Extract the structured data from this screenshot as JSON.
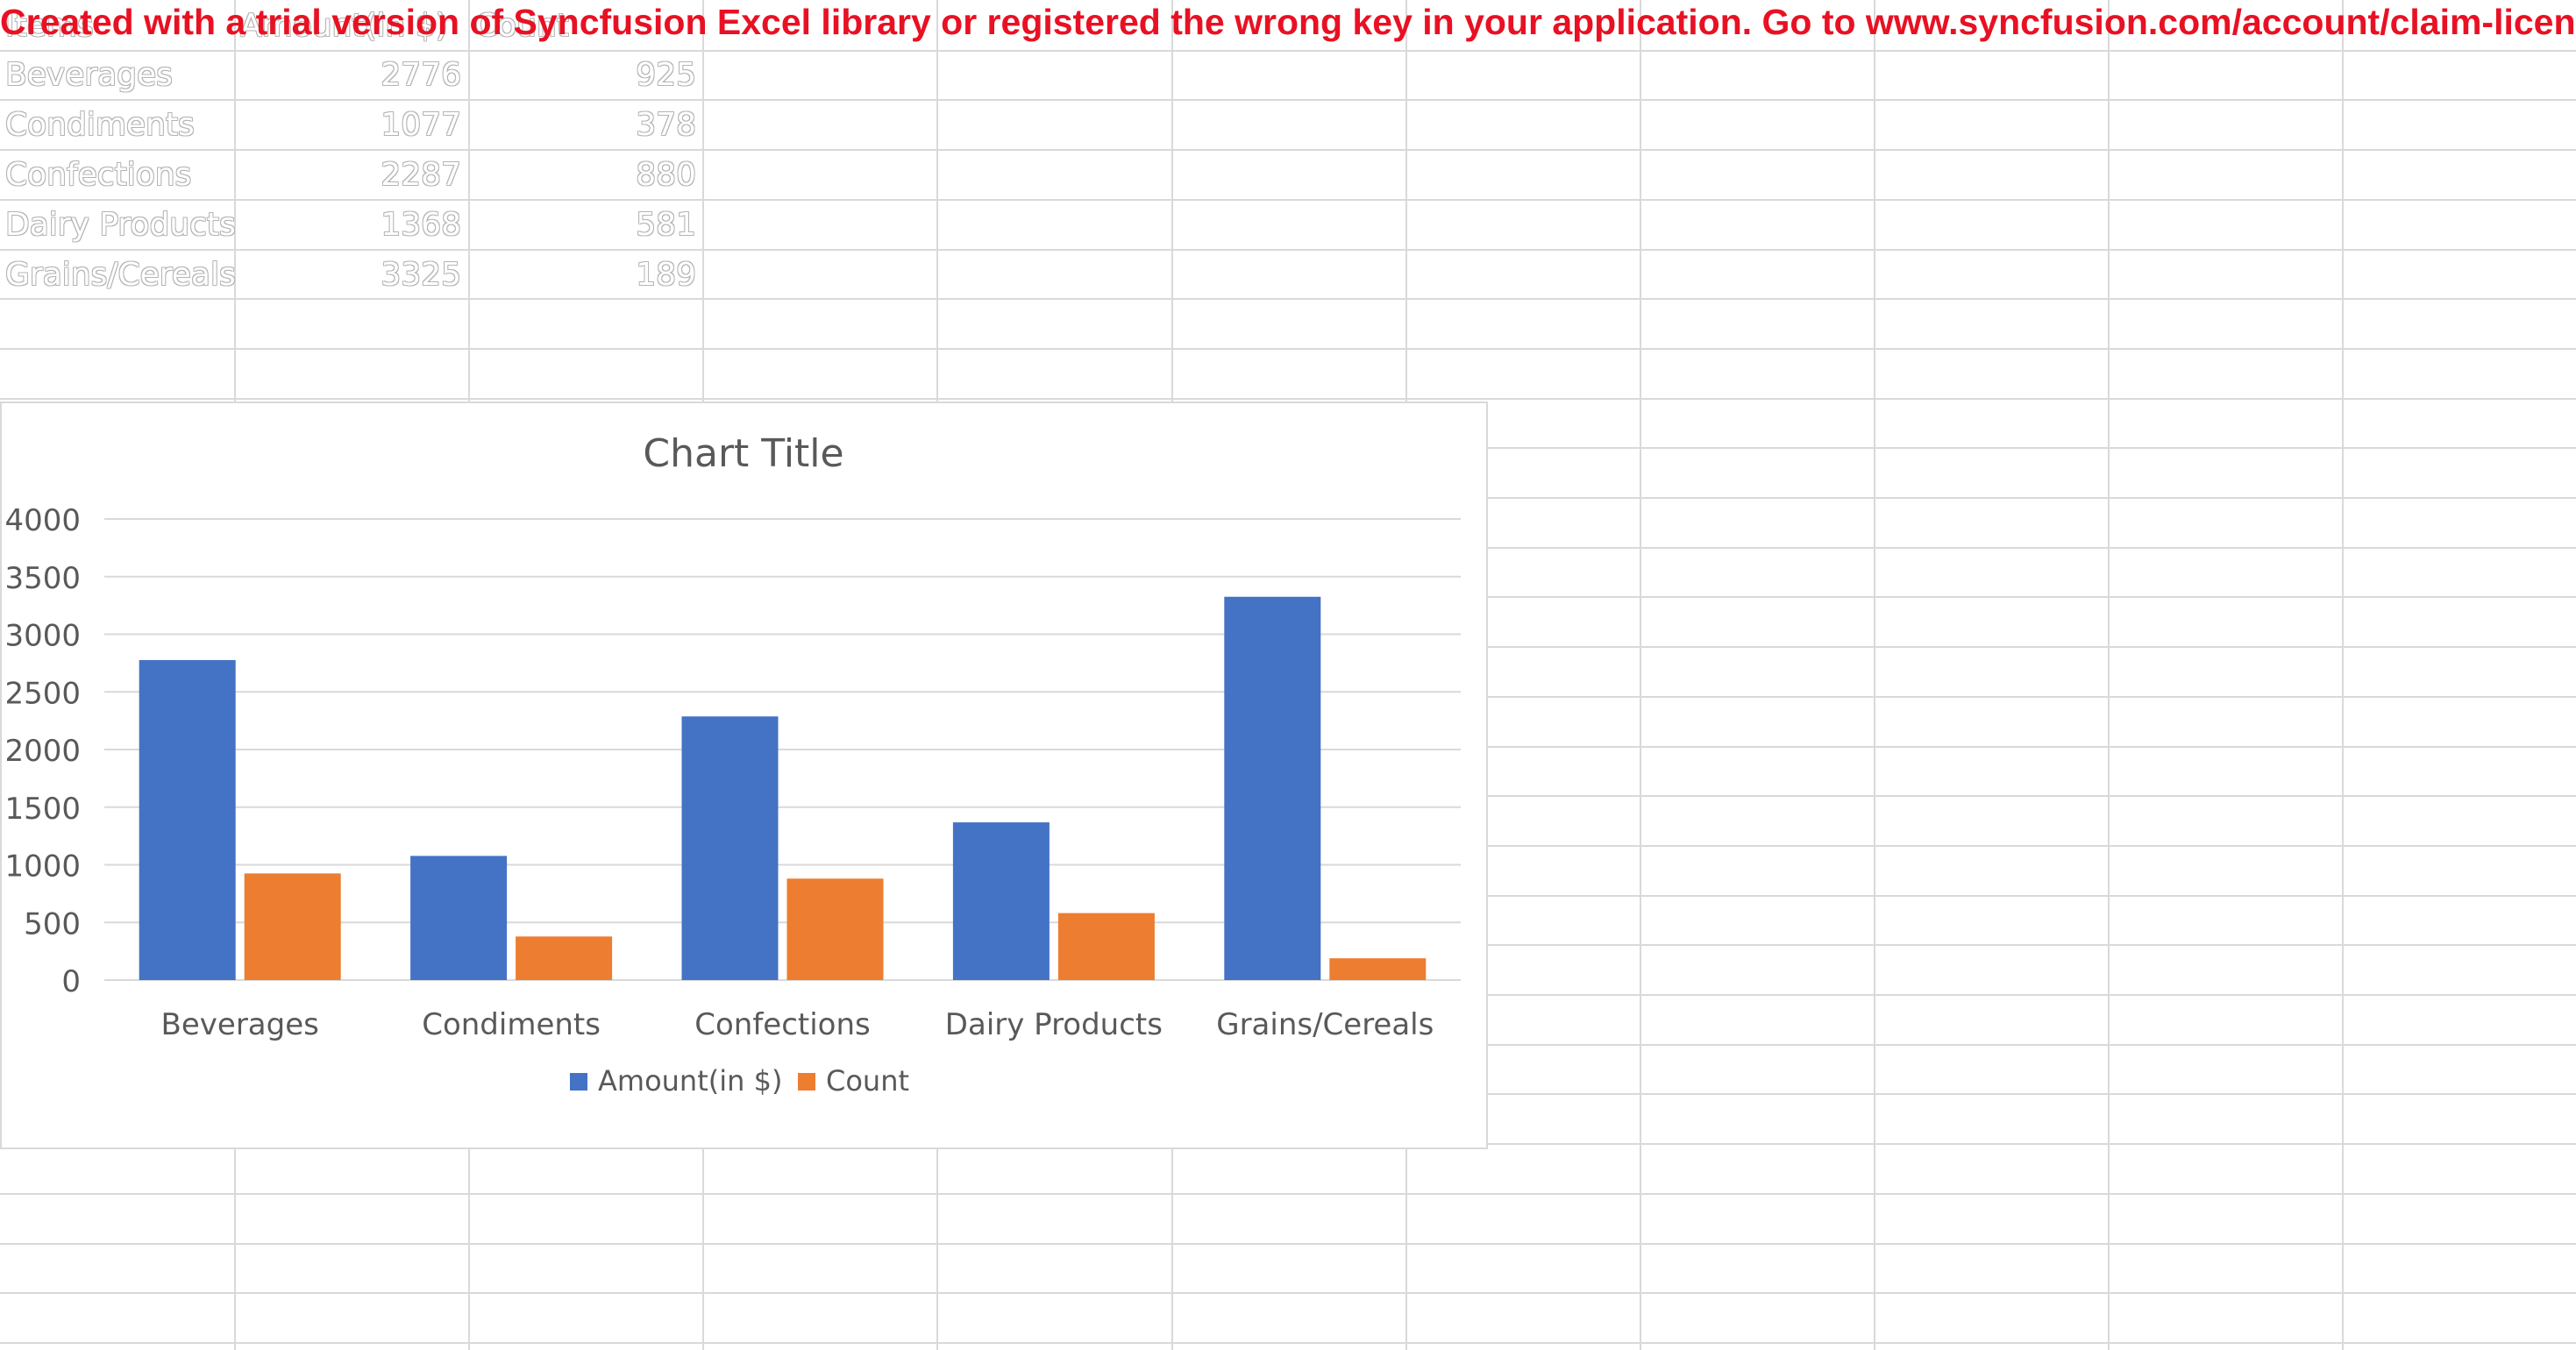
{
  "app": {
    "watermark": "Created with a trial version of Syncfusion Excel library or registered the wrong key in your application. Go to www.syncfusion.com/account/claim-license-k"
  },
  "sheet": {
    "headers": [
      "Items",
      "Amount(in $)",
      "Count"
    ],
    "rows": [
      [
        "Beverages",
        "2776",
        "925"
      ],
      [
        "Condiments",
        "1077",
        "378"
      ],
      [
        "Confections",
        "2287",
        "880"
      ],
      [
        "Dairy Products",
        "1368",
        "581"
      ],
      [
        "Grains/Cereals",
        "3325",
        "189"
      ]
    ]
  },
  "colors": {
    "series_1": "#4472c4",
    "series_2": "#ed7d31",
    "gridline": "#d9d9d9",
    "text": "#595959",
    "watermark": "#e81123"
  },
  "chart_data": {
    "type": "bar",
    "title": "Chart Title",
    "categories": [
      "Beverages",
      "Condiments",
      "Confections",
      "Dairy Products",
      "Grains/Cereals"
    ],
    "series": [
      {
        "name": "Amount(in $)",
        "values": [
          2776,
          1077,
          2287,
          1368,
          3325
        ],
        "color": "#4472c4"
      },
      {
        "name": "Count",
        "values": [
          925,
          378,
          880,
          581,
          189
        ],
        "color": "#ed7d31"
      }
    ],
    "xlabel": "",
    "ylabel": "",
    "ylim": [
      0,
      4000
    ],
    "yticks": [
      "0",
      "500",
      "1000",
      "1500",
      "2000",
      "2500",
      "3000",
      "3500",
      "4000"
    ],
    "grid": true,
    "legend": "bottom"
  }
}
